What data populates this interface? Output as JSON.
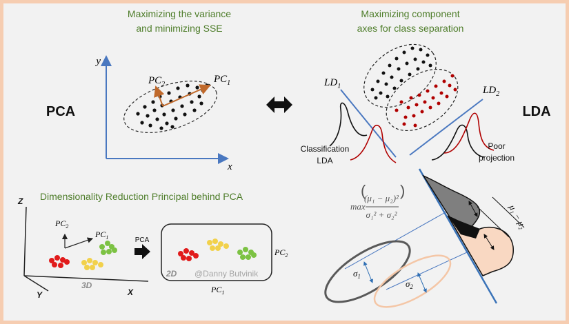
{
  "pca_panel": {
    "caption_line1": "Maximizing the variance",
    "caption_line2": "and minimizing SSE",
    "title": "PCA",
    "y_axis": "y",
    "x_axis": "x",
    "pc1": "PC",
    "pc1_sub": "1",
    "pc2": "PC",
    "pc2_sub": "2"
  },
  "lda_panel": {
    "caption_line1": "Maximizing component",
    "caption_line2": "axes for class separation",
    "title": "LDA",
    "ld1": "LD",
    "ld1_sub": "1",
    "ld2": "LD",
    "ld2_sub": "2",
    "label_classification_1": "Classification",
    "label_classification_2": "LDA",
    "label_poor_1": "Poor",
    "label_poor_2": "projection"
  },
  "dimred_panel": {
    "title": "Dimensionality Reduction Principal behind PCA",
    "axis_z": "Z",
    "axis_y": "Y",
    "axis_x": "X",
    "label_3d": "3D",
    "label_2d": "2D",
    "arrow_label": "PCA",
    "pc": "PC",
    "sub1": "1",
    "sub2": "2",
    "watermark": "@Danny Butvinik"
  },
  "lda_formula": {
    "max": "max",
    "numerator": "(μ₁ − μ₂)²",
    "denominator": "σ₁² + σ₂²",
    "mu_diff": "μ₁ − μ₂",
    "sigma": "σ",
    "sub1": "1",
    "sub2": "2"
  },
  "colors": {
    "frame_border": "#f6cdb1",
    "background": "#f2f2f2",
    "axis_blue": "#4a78c0",
    "caption_green": "#4e7d2a",
    "pc_arrow": "#c0692b",
    "class_red": "#b00000",
    "cluster_red": "#e11b1b",
    "cluster_yellow": "#f2d14b",
    "cluster_green": "#7cc243",
    "gaussian_gray": "#7f7f7f",
    "gaussian_peach": "#f9d8c2"
  }
}
